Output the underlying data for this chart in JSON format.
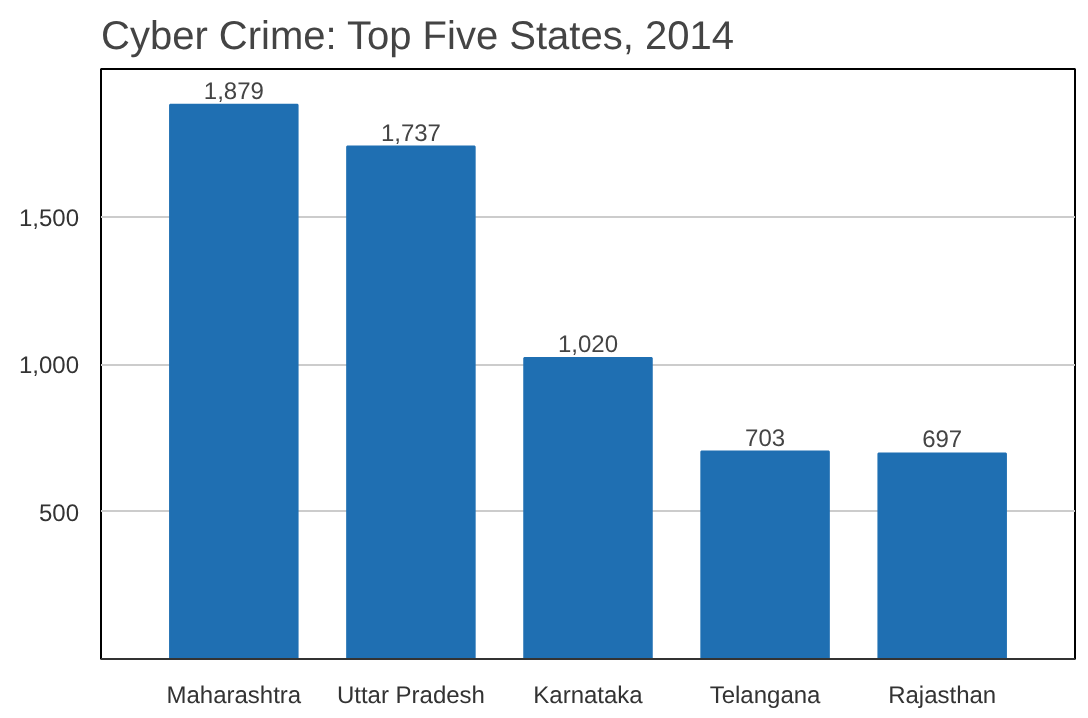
{
  "chart_data": {
    "type": "bar",
    "title": "Cyber Crime: Top Five States, 2014",
    "categories": [
      "Maharashtra",
      "Uttar Pradesh",
      "Karnataka",
      "Telangana",
      "Rajasthan"
    ],
    "values": [
      1879,
      1737,
      1020,
      703,
      697
    ],
    "color": "#1f6fb2",
    "value_labels": [
      "1,879",
      "1,737",
      "1,020",
      "703",
      "697"
    ],
    "ylim": [
      0,
      2000
    ],
    "yticks": [
      500,
      {
        "value": 1000,
        "label": "1,000"
      },
      {
        "value": 1500,
        "label": "1,500"
      }
    ],
    "grid": "y"
  }
}
